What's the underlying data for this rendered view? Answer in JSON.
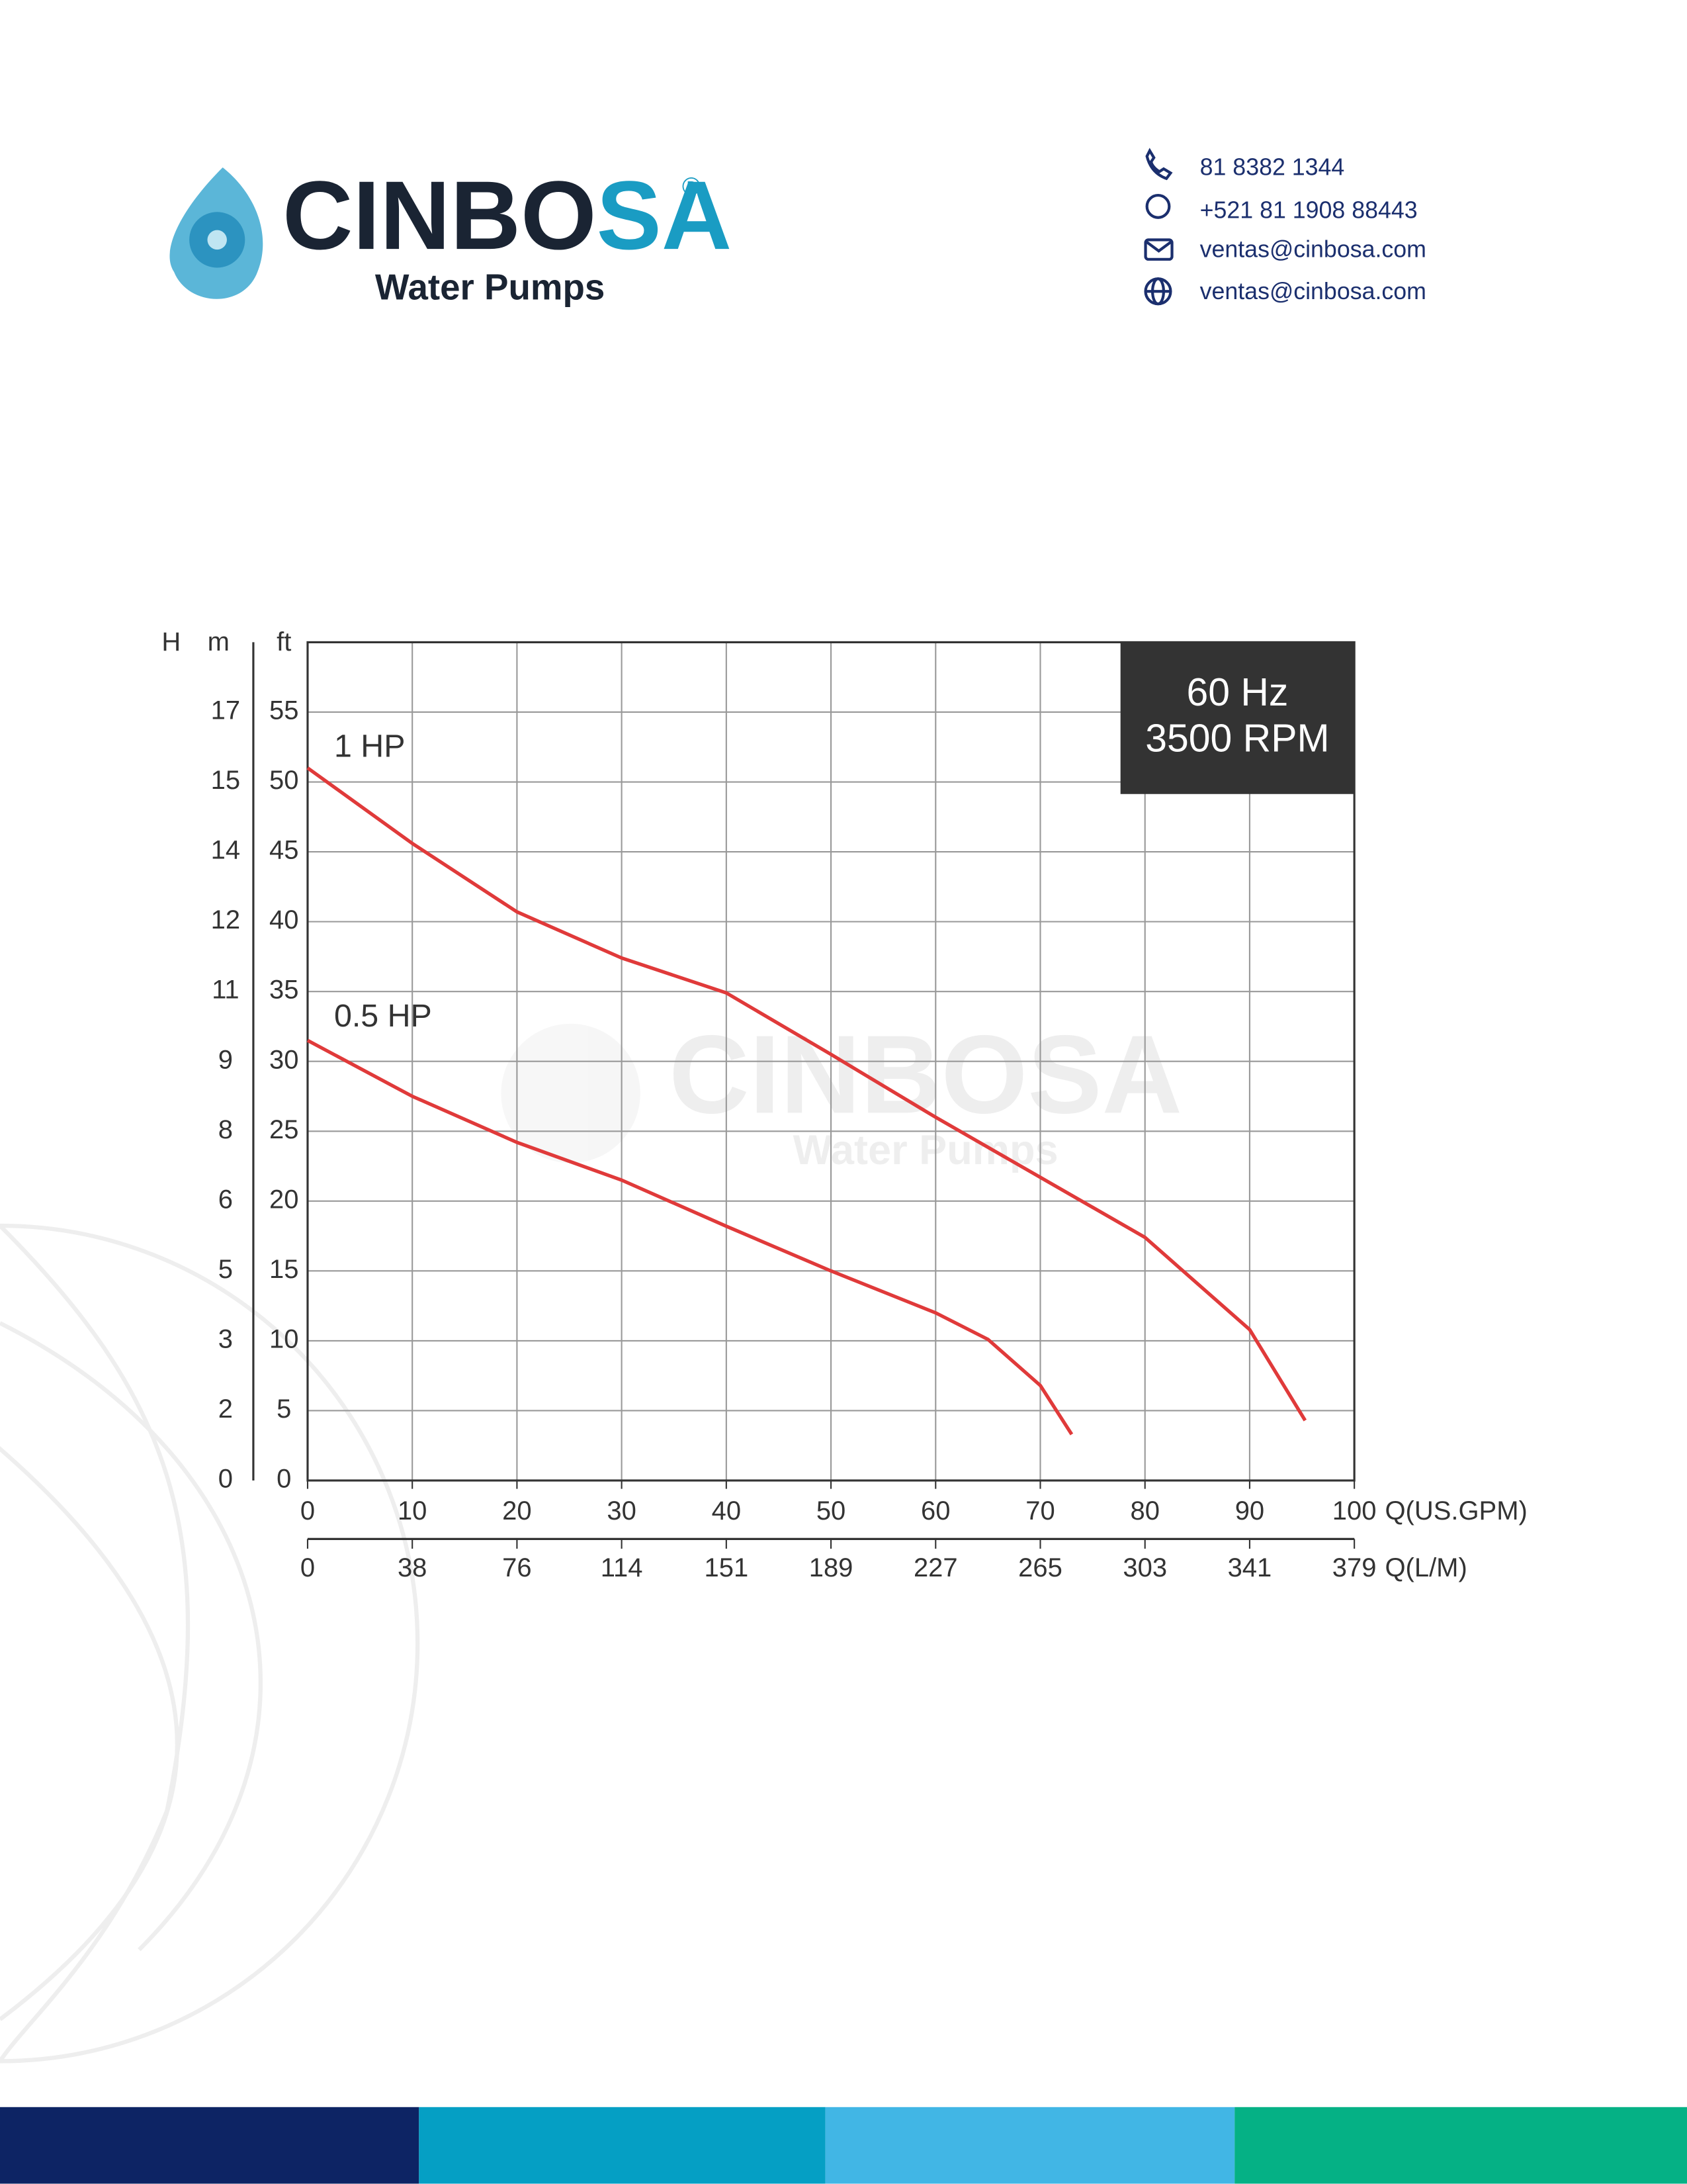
{
  "header": {
    "brand_dark": "CINBO",
    "brand_accent": "SA",
    "registered": "®",
    "tagline": "Water Pumps",
    "contacts": [
      "81 8382 1344",
      "+521 81 1908 88443",
      "ventas@cinbosa.com",
      "ventas@cinbosa.com"
    ]
  },
  "chart_data": {
    "type": "line",
    "axis_header": "H",
    "y2_title": "m",
    "y_title": "ft",
    "x_title": "Q(US.GPM)",
    "x2_title": "Q(L/M)",
    "annotation": [
      "60 Hz",
      "3500 RPM"
    ],
    "xlim": [
      0,
      100
    ],
    "xticks": [
      0,
      10,
      20,
      30,
      40,
      50,
      60,
      70,
      80,
      90,
      100
    ],
    "x2lim": [
      0,
      378.5
    ],
    "x2ticks": [
      0,
      {
        "value": 37.85,
        "label": "38"
      },
      {
        "value": 75.7,
        "label": "76"
      },
      {
        "value": 113.55,
        "label": "114"
      },
      {
        "value": 151.4,
        "label": "151"
      },
      {
        "value": 189.25,
        "label": "189"
      },
      {
        "value": 227.1,
        "label": "227"
      },
      {
        "value": 264.95,
        "label": "265"
      },
      {
        "value": 302.8,
        "label": "303"
      },
      {
        "value": 340.65,
        "label": "341"
      },
      {
        "value": 378.5,
        "label": "379"
      }
    ],
    "ylim": [
      0,
      60
    ],
    "yticks": [
      0,
      5,
      10,
      15,
      20,
      25,
      30,
      35,
      40,
      45,
      50,
      55
    ],
    "y2lim": [
      0,
      18.288
    ],
    "y2ticks": [
      0,
      {
        "value": 1.524,
        "label": "2"
      },
      {
        "value": 3.048,
        "label": "3"
      },
      {
        "value": 4.572,
        "label": "5"
      },
      {
        "value": 6.096,
        "label": "6"
      },
      {
        "value": 7.62,
        "label": "8"
      },
      {
        "value": 9.144,
        "label": "9"
      },
      {
        "value": 10.668,
        "label": "11"
      },
      {
        "value": 12.192,
        "label": "12"
      },
      {
        "value": 13.716,
        "label": "14"
      },
      {
        "value": 15.24,
        "label": "15"
      },
      {
        "value": 16.764,
        "label": "17"
      }
    ],
    "grid": true,
    "series": [
      {
        "name": "1 HP",
        "color": "#e03a3a",
        "x": [
          0,
          10,
          20,
          30,
          40,
          50,
          60,
          70,
          80,
          90,
          95.3
        ],
        "values": [
          51,
          45.6,
          40.7,
          37.4,
          34.9,
          30.5,
          26,
          21.7,
          17.4,
          10.8,
          4.3
        ]
      },
      {
        "name": "0.5 HP",
        "color": "#e03a3a",
        "x": [
          0,
          10,
          20,
          30,
          40,
          50,
          60,
          65,
          70,
          73
        ],
        "values": [
          31.5,
          27.5,
          24.2,
          21.5,
          18.2,
          15,
          12,
          10.1,
          6.8,
          3.3
        ]
      }
    ]
  }
}
